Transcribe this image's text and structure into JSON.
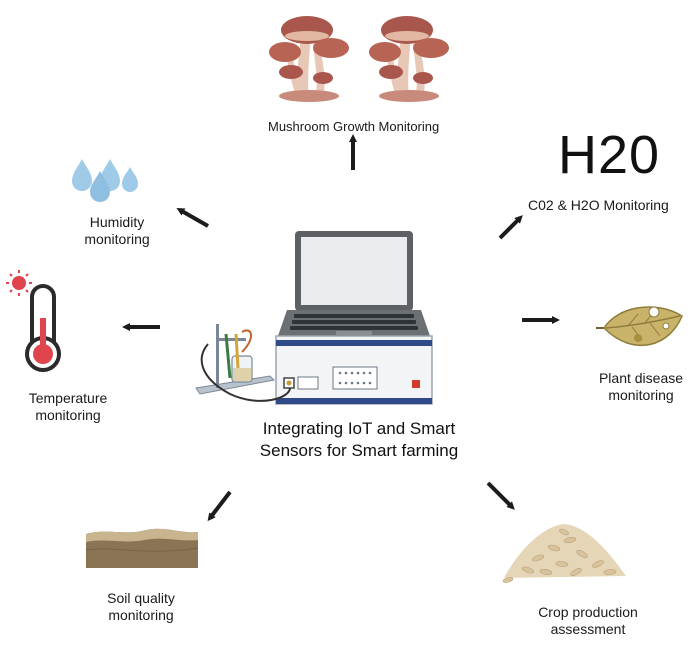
{
  "center": {
    "caption_line1": "Integrating IoT and Smart",
    "caption_line2": "Sensors for Smart farming"
  },
  "nodes": {
    "mushroom": {
      "label": "Mushroom Growth Monitoring"
    },
    "co2_h2o": {
      "mark": "H20",
      "label": "C02 & H2O Monitoring"
    },
    "humidity": {
      "label_line1": "Humidity",
      "label_line2": "monitoring"
    },
    "temperature": {
      "label_line1": "Temperature",
      "label_line2": "monitoring"
    },
    "plant_disease": {
      "label_line1": "Plant disease",
      "label_line2": "monitoring"
    },
    "soil": {
      "label_line1": "Soil quality",
      "label_line2": "monitoring"
    },
    "crop": {
      "label_line1": "Crop production",
      "label_line2": "assessment"
    }
  },
  "colors": {
    "arrow": "#1c1c1c",
    "laptop_frame": "#5d6166",
    "device_body": "#f2f4f6",
    "device_panel": "#2e4a8a",
    "mushroom_cap": "#a9574c",
    "water_drop": "#9fcbe8",
    "thermometer_red": "#e0454d",
    "leaf": "#c9b36a",
    "soil": "#8b7356",
    "grain": "#e6d6b8"
  }
}
